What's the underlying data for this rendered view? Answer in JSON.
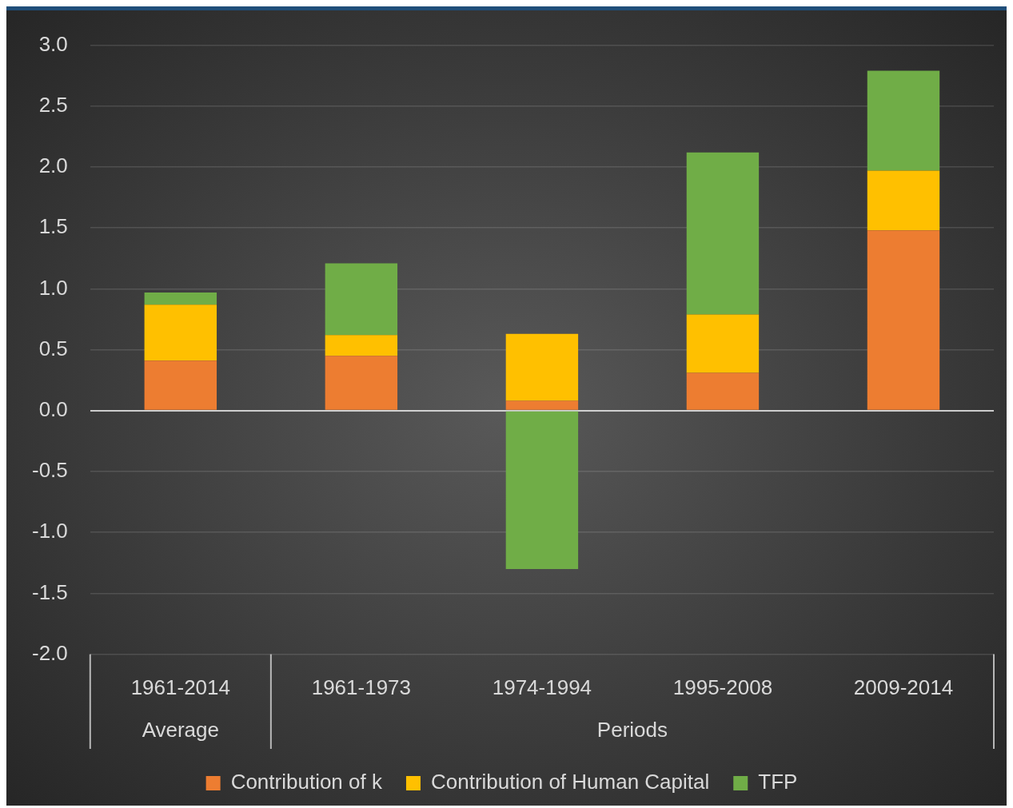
{
  "chart_data": {
    "type": "bar",
    "stacked": true,
    "categories": [
      "1961-2014",
      "1961-1973",
      "1974-1994",
      "1995-2008",
      "2009-2014"
    ],
    "series": [
      {
        "name": "Contribution of k",
        "color": "#ed7d31",
        "values": [
          0.41,
          0.45,
          0.08,
          0.31,
          1.48
        ]
      },
      {
        "name": "Contribution of Human Capital",
        "color": "#ffc000",
        "values": [
          0.46,
          0.17,
          0.55,
          0.48,
          0.49
        ]
      },
      {
        "name": "TFP",
        "color": "#70ad47",
        "values": [
          0.1,
          0.59,
          -1.3,
          1.33,
          0.82
        ]
      }
    ],
    "ylim": [
      -2.0,
      3.0
    ],
    "yticks": [
      {
        "value": -2,
        "label": "-2.0"
      },
      {
        "value": -1.5,
        "label": "-1.5"
      },
      {
        "value": -1,
        "label": "-1.0"
      },
      {
        "value": -0.5,
        "label": "-0.5"
      },
      {
        "value": 0,
        "label": "0.0"
      },
      {
        "value": 0.5,
        "label": "0.5"
      },
      {
        "value": 1,
        "label": "1.0"
      },
      {
        "value": 1.5,
        "label": "1.5"
      },
      {
        "value": 2,
        "label": "2.0"
      },
      {
        "value": 2.5,
        "label": "2.5"
      },
      {
        "value": 3,
        "label": "3.0"
      }
    ],
    "grid": "y",
    "legend": "bottom",
    "annotations": [
      "Average",
      "Periods"
    ]
  }
}
